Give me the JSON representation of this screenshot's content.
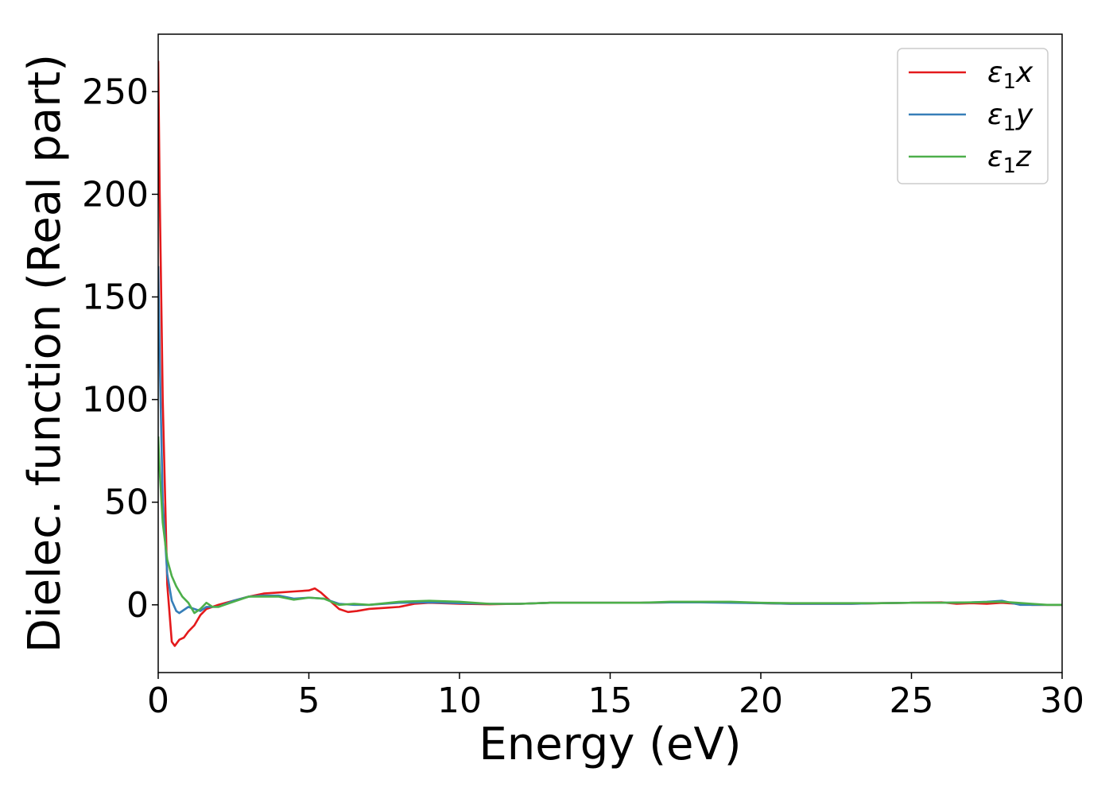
{
  "chart_data": {
    "type": "line",
    "title": "",
    "xlabel": "Energy (eV)",
    "ylabel": "Dielec. function (Real part)",
    "xlim": [
      0,
      30
    ],
    "ylim": [
      -33,
      278
    ],
    "xticks": [
      0,
      5,
      10,
      15,
      20,
      25,
      30
    ],
    "yticks": [
      0,
      50,
      100,
      150,
      200,
      250
    ],
    "grid": false,
    "legend_position": "top-right",
    "series": [
      {
        "name": "ε1x",
        "label_base": "ε",
        "label_sub": "1",
        "label_var": "x",
        "color": "#e41a1c",
        "x": [
          0,
          0.05,
          0.15,
          0.3,
          0.45,
          0.55,
          0.7,
          0.85,
          1.0,
          1.2,
          1.4,
          1.6,
          1.8,
          2.0,
          2.5,
          3.0,
          3.5,
          4.0,
          4.5,
          5.0,
          5.2,
          5.4,
          5.7,
          6.0,
          6.3,
          6.6,
          7.0,
          7.5,
          8.0,
          8.5,
          9.0,
          10,
          11,
          12,
          13,
          14,
          15,
          16,
          17,
          18,
          19,
          20,
          21,
          22,
          23,
          24,
          25,
          26,
          26.5,
          27,
          27.5,
          28,
          28.5,
          29,
          29.5,
          30
        ],
        "y": [
          265,
          200,
          100,
          10,
          -18,
          -20,
          -17,
          -16,
          -13,
          -10,
          -5,
          -2,
          -1,
          0,
          2,
          4,
          5.5,
          6,
          6.5,
          7,
          8,
          6,
          2,
          -2,
          -3.5,
          -3,
          -2,
          -1.5,
          -1,
          0.5,
          1,
          0.5,
          0.3,
          0.5,
          1,
          1,
          1,
          1,
          1.2,
          1.2,
          1.2,
          0.8,
          0.5,
          0.5,
          0.5,
          0.8,
          1,
          1.2,
          0.5,
          0.8,
          0.5,
          1,
          0.5,
          0,
          0,
          0
        ]
      },
      {
        "name": "ε1y",
        "label_base": "ε",
        "label_sub": "1",
        "label_var": "y",
        "color": "#377eb8",
        "x": [
          0,
          0.05,
          0.15,
          0.3,
          0.45,
          0.6,
          0.7,
          0.85,
          1.0,
          1.2,
          1.4,
          1.6,
          1.8,
          2.0,
          2.5,
          3.0,
          3.5,
          4.0,
          4.5,
          5.0,
          5.5,
          6.0,
          6.5,
          7.0,
          8.0,
          9.0,
          10,
          11,
          12,
          13,
          14,
          15,
          16,
          17,
          18,
          19,
          20,
          21,
          22,
          23,
          24,
          25,
          26,
          27,
          27.5,
          28,
          28.3,
          28.6,
          29,
          29.5,
          30
        ],
        "y": [
          165,
          120,
          50,
          15,
          2,
          -3,
          -4,
          -2.5,
          -1,
          -2,
          -3,
          -1,
          -1,
          -1,
          2,
          4,
          4.5,
          4.5,
          3,
          3.5,
          3,
          0.5,
          0,
          0,
          1,
          1.2,
          0.8,
          0.5,
          0.5,
          1,
          1,
          1,
          1,
          1.2,
          1.2,
          1,
          0.8,
          0.5,
          0.5,
          0.5,
          0.8,
          1,
          1,
          1.2,
          1.5,
          2,
          1,
          0,
          0,
          0,
          0
        ]
      },
      {
        "name": "ε1z",
        "label_base": "ε",
        "label_sub": "1",
        "label_var": "z",
        "color": "#4daf4a",
        "x": [
          0,
          0.05,
          0.15,
          0.3,
          0.45,
          0.6,
          0.8,
          1.0,
          1.2,
          1.4,
          1.6,
          1.8,
          2.0,
          2.5,
          3.0,
          3.5,
          4.0,
          4.5,
          5.0,
          5.5,
          6.0,
          6.5,
          7.0,
          8.0,
          9.0,
          10,
          11,
          12,
          13,
          14,
          15,
          16,
          17,
          18,
          19,
          20,
          21,
          22,
          23,
          24,
          25,
          26,
          27,
          28,
          28.5,
          29,
          29.5,
          30
        ],
        "y": [
          82,
          65,
          40,
          22,
          14,
          9,
          4,
          1,
          -4,
          -2,
          1,
          -1,
          -1,
          1.5,
          4,
          4,
          4,
          2.5,
          3.5,
          3,
          0,
          0.5,
          0,
          1.5,
          2,
          1.5,
          0.5,
          0.5,
          1,
          1,
          1,
          1,
          1.5,
          1.5,
          1.5,
          1,
          0.8,
          0.8,
          0.8,
          0.8,
          1,
          1,
          1.2,
          1.5,
          1,
          0.5,
          0,
          0
        ]
      }
    ]
  }
}
